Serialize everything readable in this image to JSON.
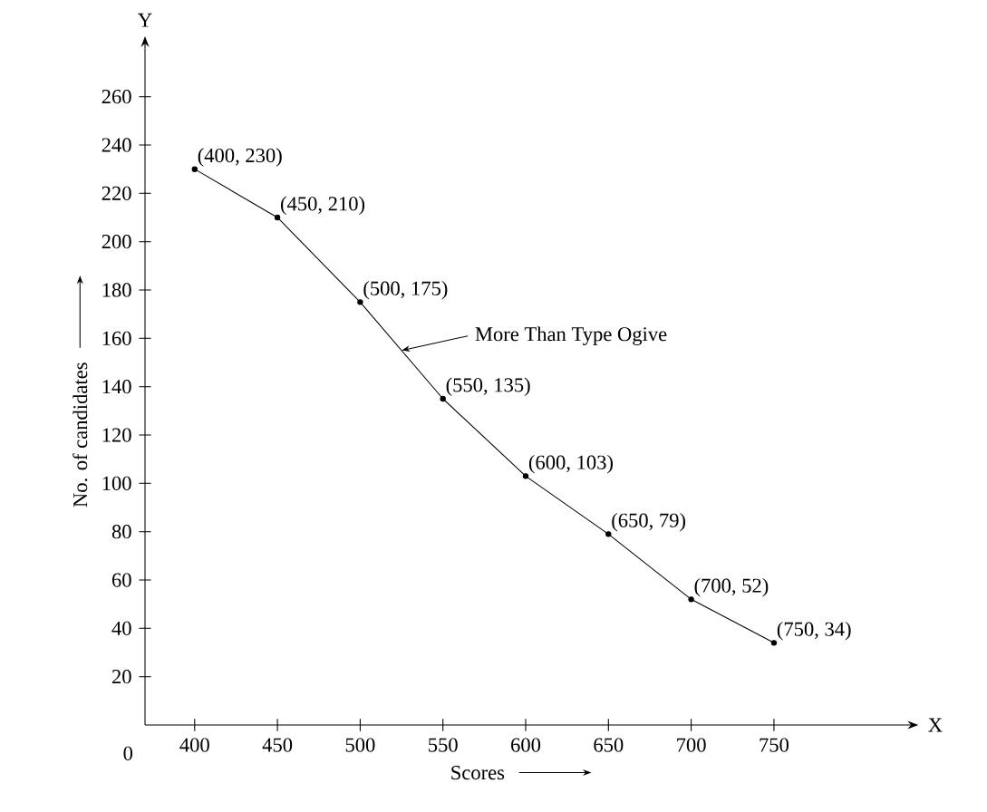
{
  "chart_data": {
    "type": "line",
    "xlabel": "Scores",
    "ylabel": "No. of candidates",
    "x": [
      400,
      450,
      500,
      550,
      600,
      650,
      700,
      750
    ],
    "values": [
      230,
      210,
      175,
      135,
      103,
      79,
      52,
      34
    ],
    "value_labels": [
      "(400, 230)",
      "(450, 210)",
      "(500, 175)",
      "(550, 135)",
      "(600, 103)",
      "(650, 79)",
      "(700, 52)",
      "(750, 34)"
    ],
    "color": "#000000",
    "marker": "circle",
    "line_style": "solid",
    "xlim": [
      370,
      830
    ],
    "ylim": [
      0,
      280
    ],
    "xticks": [
      400,
      450,
      500,
      550,
      600,
      650,
      700,
      750
    ],
    "yticks": [
      20,
      40,
      60,
      80,
      100,
      120,
      140,
      160,
      180,
      200,
      220,
      240,
      260
    ],
    "annotations": [
      {
        "text": "More Than Type Ogive",
        "x": 525,
        "y": 155
      },
      "X",
      "Y",
      "0"
    ]
  }
}
